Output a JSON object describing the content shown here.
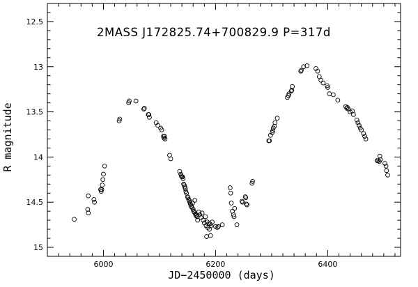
{
  "chart_data": {
    "type": "scatter",
    "title": "2MASS  J172825.74+700829.9  P=317d",
    "xlabel": "JD−2450000 (days)",
    "ylabel": "R  magnitude",
    "xlim": [
      5900,
      6530
    ],
    "ylim": [
      15.1,
      12.3
    ],
    "y_inverted": true,
    "grid": false,
    "x_major_ticks": [
      6000,
      6200,
      6400
    ],
    "x_tick_labels": [
      "6000",
      "6200",
      "6400"
    ],
    "y_major_ticks": [
      12.5,
      13,
      13.5,
      14,
      14.5,
      15
    ],
    "y_tick_labels": [
      "12.5",
      "13",
      "13.5",
      "14",
      "14.5",
      "15"
    ],
    "marker": "open-circle",
    "points": [
      [
        5948,
        14.69
      ],
      [
        5972,
        14.58
      ],
      [
        5973,
        14.62
      ],
      [
        5973,
        14.43
      ],
      [
        5983,
        14.47
      ],
      [
        5984,
        14.5
      ],
      [
        5995,
        14.36
      ],
      [
        5996,
        14.38
      ],
      [
        5997,
        14.36
      ],
      [
        5998,
        14.31
      ],
      [
        5999,
        14.25
      ],
      [
        6000,
        14.19
      ],
      [
        6002,
        14.1
      ],
      [
        6028,
        13.6
      ],
      [
        6029,
        13.58
      ],
      [
        6045,
        13.4
      ],
      [
        6046,
        13.38
      ],
      [
        6058,
        13.38
      ],
      [
        6072,
        13.47
      ],
      [
        6073,
        13.46
      ],
      [
        6080,
        13.53
      ],
      [
        6081,
        13.53
      ],
      [
        6082,
        13.56
      ],
      [
        6094,
        13.62
      ],
      [
        6097,
        13.65
      ],
      [
        6102,
        13.68
      ],
      [
        6104,
        13.7
      ],
      [
        6107,
        13.77
      ],
      [
        6108,
        13.79
      ],
      [
        6109,
        13.77
      ],
      [
        6110,
        13.8
      ],
      [
        6118,
        13.98
      ],
      [
        6120,
        14.02
      ],
      [
        6136,
        14.16
      ],
      [
        6138,
        14.19
      ],
      [
        6139,
        14.21
      ],
      [
        6140,
        14.22
      ],
      [
        6141,
        14.22
      ],
      [
        6142,
        14.24
      ],
      [
        6143,
        14.3
      ],
      [
        6144,
        14.31
      ],
      [
        6145,
        14.33
      ],
      [
        6146,
        14.35
      ],
      [
        6147,
        14.38
      ],
      [
        6148,
        14.4
      ],
      [
        6150,
        14.44
      ],
      [
        6151,
        14.45
      ],
      [
        6152,
        14.47
      ],
      [
        6153,
        14.48
      ],
      [
        6154,
        14.5
      ],
      [
        6155,
        14.52
      ],
      [
        6156,
        14.53
      ],
      [
        6157,
        14.55
      ],
      [
        6158,
        14.56
      ],
      [
        6159,
        14.51
      ],
      [
        6160,
        14.58
      ],
      [
        6161,
        14.6
      ],
      [
        6162,
        14.61
      ],
      [
        6163,
        14.48
      ],
      [
        6164,
        14.63
      ],
      [
        6165,
        14.65
      ],
      [
        6166,
        14.64
      ],
      [
        6167,
        14.66
      ],
      [
        6168,
        14.7
      ],
      [
        6170,
        14.61
      ],
      [
        6172,
        14.64
      ],
      [
        6174,
        14.67
      ],
      [
        6176,
        14.62
      ],
      [
        6178,
        14.7
      ],
      [
        6180,
        14.73
      ],
      [
        6182,
        14.66
      ],
      [
        6183,
        14.76
      ],
      [
        6184,
        14.88
      ],
      [
        6185,
        14.72
      ],
      [
        6186,
        14.78
      ],
      [
        6188,
        14.74
      ],
      [
        6189,
        14.8
      ],
      [
        6190,
        14.74
      ],
      [
        6191,
        14.87
      ],
      [
        6192,
        14.76
      ],
      [
        6194,
        14.72
      ],
      [
        6200,
        14.77
      ],
      [
        6203,
        14.78
      ],
      [
        6205,
        14.77
      ],
      [
        6212,
        14.75
      ],
      [
        6226,
        14.34
      ],
      [
        6227,
        14.4
      ],
      [
        6228,
        14.51
      ],
      [
        6230,
        14.6
      ],
      [
        6232,
        14.64
      ],
      [
        6233,
        14.66
      ],
      [
        6234,
        14.57
      ],
      [
        6238,
        14.75
      ],
      [
        6247,
        14.49
      ],
      [
        6248,
        14.5
      ],
      [
        6253,
        14.44
      ],
      [
        6254,
        14.45
      ],
      [
        6255,
        14.52
      ],
      [
        6256,
        14.53
      ],
      [
        6265,
        14.29
      ],
      [
        6266,
        14.27
      ],
      [
        6295,
        13.82
      ],
      [
        6296,
        13.82
      ],
      [
        6298,
        13.76
      ],
      [
        6301,
        13.73
      ],
      [
        6302,
        13.71
      ],
      [
        6303,
        13.68
      ],
      [
        6305,
        13.66
      ],
      [
        6306,
        13.62
      ],
      [
        6310,
        13.57
      ],
      [
        6328,
        13.34
      ],
      [
        6330,
        13.32
      ],
      [
        6331,
        13.3
      ],
      [
        6335,
        13.27
      ],
      [
        6336,
        13.26
      ],
      [
        6337,
        13.22
      ],
      [
        6352,
        13.05
      ],
      [
        6353,
        13.04
      ],
      [
        6357,
        13.0
      ],
      [
        6363,
        12.99
      ],
      [
        6379,
        13.02
      ],
      [
        6382,
        13.05
      ],
      [
        6385,
        13.11
      ],
      [
        6388,
        13.15
      ],
      [
        6392,
        13.18
      ],
      [
        6399,
        13.21
      ],
      [
        6400,
        13.23
      ],
      [
        6403,
        13.3
      ],
      [
        6410,
        13.31
      ],
      [
        6418,
        13.37
      ],
      [
        6432,
        13.44
      ],
      [
        6434,
        13.46
      ],
      [
        6435,
        13.45
      ],
      [
        6437,
        13.47
      ],
      [
        6440,
        13.5
      ],
      [
        6444,
        13.49
      ],
      [
        6446,
        13.53
      ],
      [
        6452,
        13.59
      ],
      [
        6454,
        13.62
      ],
      [
        6456,
        13.65
      ],
      [
        6458,
        13.68
      ],
      [
        6460,
        13.7
      ],
      [
        6464,
        13.74
      ],
      [
        6466,
        13.77
      ],
      [
        6468,
        13.8
      ],
      [
        6488,
        14.04
      ],
      [
        6490,
        14.04
      ],
      [
        6492,
        14.05
      ],
      [
        6493,
        13.99
      ],
      [
        6494,
        14.03
      ],
      [
        6502,
        14.07
      ],
      [
        6504,
        14.1
      ],
      [
        6505,
        14.15
      ],
      [
        6507,
        14.2
      ]
    ]
  }
}
